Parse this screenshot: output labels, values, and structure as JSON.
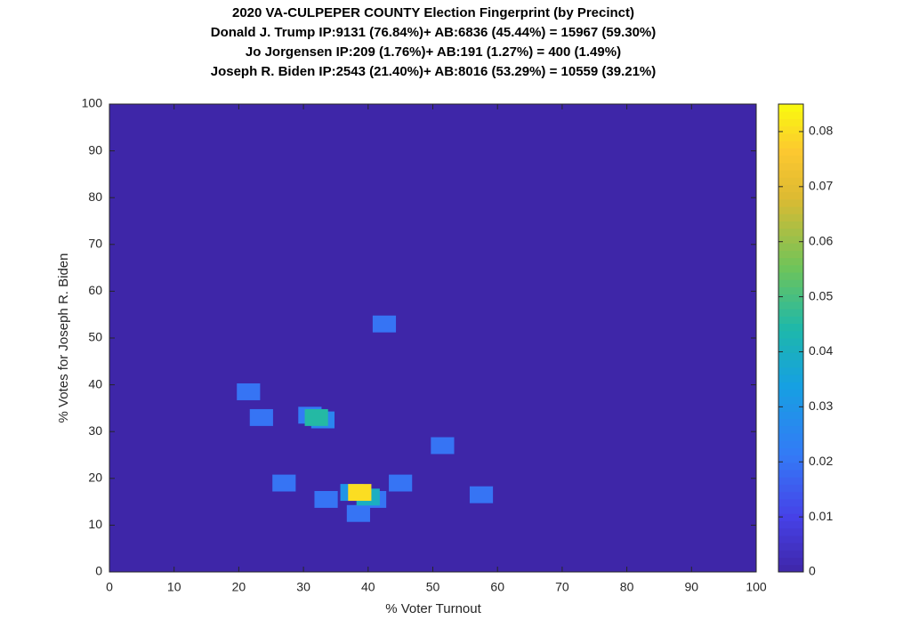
{
  "chart_data": {
    "type": "heatmap",
    "title": [
      "2020 VA-CULPEPER COUNTY Election Fingerprint (by Precinct)",
      "Donald J. Trump IP:9131 (76.84%)+ AB:6836 (45.44%) = 15967 (59.30%)",
      "Jo Jorgensen IP:209 (1.76%)+ AB:191 (1.27%) = 400 (1.49%)",
      "Joseph R. Biden IP:2543 (21.40%)+ AB:8016 (53.29%) = 10559 (39.21%)"
    ],
    "xlabel": "% Voter Turnout",
    "ylabel": "% Votes for Joseph R. Biden",
    "xlim": [
      0,
      100
    ],
    "ylim": [
      0,
      100
    ],
    "xticks": [
      0,
      10,
      20,
      30,
      40,
      50,
      60,
      70,
      80,
      90,
      100
    ],
    "yticks": [
      0,
      10,
      20,
      30,
      40,
      50,
      60,
      70,
      80,
      90,
      100
    ],
    "clim": [
      0,
      0.085
    ],
    "cticks": [
      0,
      0.01,
      0.02,
      0.03,
      0.04,
      0.05,
      0.06,
      0.07,
      0.08
    ],
    "colormap": "parula",
    "cells": [
      {
        "x": 42.5,
        "y": 53,
        "value": 0.02
      },
      {
        "x": 21.5,
        "y": 38.5,
        "value": 0.02
      },
      {
        "x": 23.5,
        "y": 33,
        "value": 0.02
      },
      {
        "x": 31,
        "y": 33.5,
        "value": 0.022
      },
      {
        "x": 33,
        "y": 32.5,
        "value": 0.025
      },
      {
        "x": 32,
        "y": 33,
        "value": 0.045
      },
      {
        "x": 51.5,
        "y": 27,
        "value": 0.02
      },
      {
        "x": 27,
        "y": 19,
        "value": 0.02
      },
      {
        "x": 45,
        "y": 19,
        "value": 0.02
      },
      {
        "x": 57.5,
        "y": 16.5,
        "value": 0.02
      },
      {
        "x": 33.5,
        "y": 15.5,
        "value": 0.02
      },
      {
        "x": 41,
        "y": 15.5,
        "value": 0.02
      },
      {
        "x": 38.5,
        "y": 12.5,
        "value": 0.02
      },
      {
        "x": 37.5,
        "y": 17,
        "value": 0.03
      },
      {
        "x": 40,
        "y": 16,
        "value": 0.04
      },
      {
        "x": 38.7,
        "y": 17,
        "value": 0.08
      }
    ]
  }
}
